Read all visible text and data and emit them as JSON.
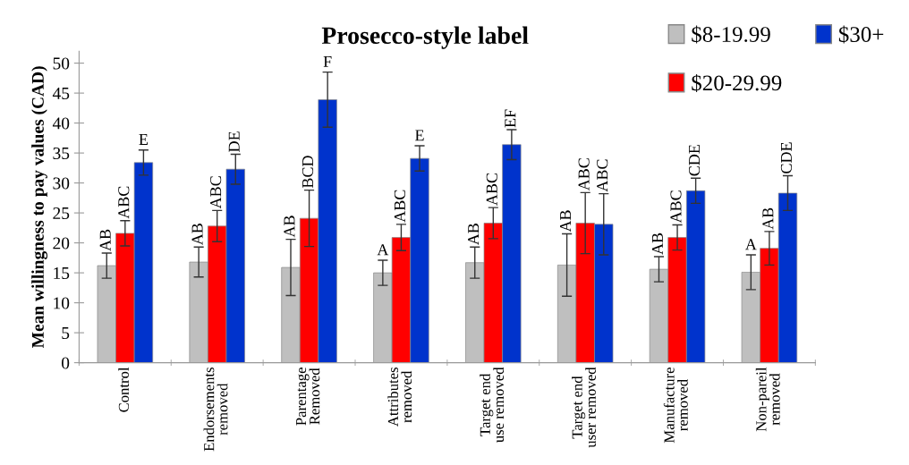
{
  "chart_data": {
    "type": "bar",
    "title": "Prosecco-style label",
    "ylabel": "Mean willingness to pay values (CAD)",
    "categories": [
      "Control",
      "Endorsements\nremoved",
      "Parentage\nRemoved",
      "Attributes\nremoved",
      "Target end\nuse removed",
      "Target end\nuser removed",
      "Manufacture\nremoved",
      "Non-pareil\nremoved"
    ],
    "series": [
      {
        "name": "$8-19.99",
        "color": "#bfbfbf",
        "values": [
          16.2,
          16.8,
          15.9,
          15.0,
          16.7,
          16.3,
          15.6,
          15.1
        ],
        "errors": [
          2.1,
          2.5,
          4.7,
          2.1,
          2.6,
          5.2,
          2.1,
          2.9
        ],
        "value_labels": [
          "AB",
          "AB",
          "AB",
          "A",
          "AB",
          "AB",
          "AB",
          "A"
        ]
      },
      {
        "name": "$20-29.99",
        "color": "#ff0000",
        "values": [
          21.6,
          22.8,
          24.1,
          20.9,
          23.3,
          23.3,
          20.9,
          19.1
        ],
        "errors": [
          2.1,
          2.6,
          4.7,
          2.2,
          2.6,
          5.1,
          2.1,
          2.8
        ],
        "value_labels": [
          "ABC",
          "ABC",
          "BCD",
          "ABC",
          "ABC",
          "ABC",
          "ABC",
          "AB"
        ]
      },
      {
        "name": "$30+",
        "color": "#0033cc",
        "values": [
          33.4,
          32.3,
          43.9,
          34.1,
          36.4,
          23.1,
          28.7,
          28.3
        ],
        "errors": [
          2.1,
          2.5,
          4.6,
          2.1,
          2.5,
          5.1,
          2.1,
          2.9
        ],
        "value_labels": [
          "E",
          "DE",
          "F",
          "E",
          "EF",
          "ABC",
          "CDE",
          "CDE"
        ]
      }
    ],
    "ylim": [
      0,
      52
    ],
    "yticks": [
      0,
      5,
      10,
      15,
      20,
      25,
      30,
      35,
      40,
      45,
      50
    ],
    "grid": false,
    "legend": "top right"
  }
}
